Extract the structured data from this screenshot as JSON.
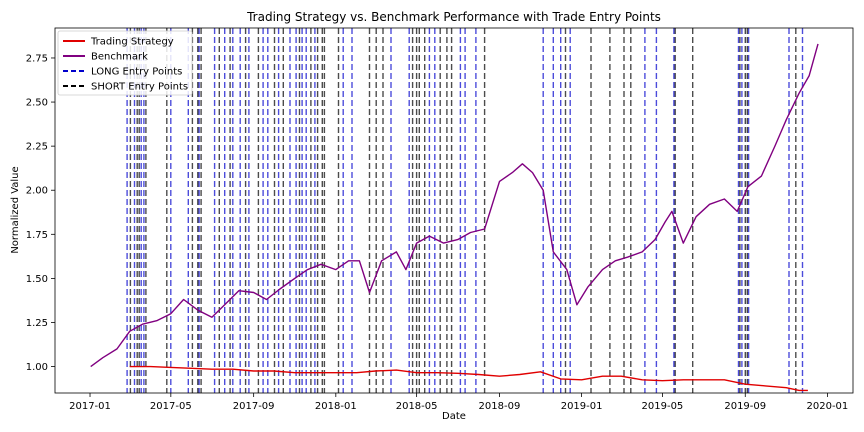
{
  "chart_data": {
    "type": "line",
    "title": "Trading Strategy vs. Benchmark Performance with Trade Entry Points",
    "xlabel": "Date",
    "ylabel": "Normalized Value",
    "xlim": [
      "2016-11-10",
      "2020-02-08"
    ],
    "ylim": [
      0.85,
      2.92
    ],
    "x_ticks": [
      "2017-01",
      "2017-05",
      "2017-09",
      "2018-01",
      "2018-05",
      "2018-09",
      "2019-01",
      "2019-05",
      "2019-09",
      "2020-01"
    ],
    "y_ticks": [
      "1.00",
      "1.25",
      "1.50",
      "1.75",
      "2.00",
      "2.25",
      "2.50",
      "2.75"
    ],
    "grid": false,
    "legend_position": "top-left",
    "colors": {
      "strategy": "#e00000",
      "benchmark": "#800080",
      "long": "#0000cc",
      "short": "#000000"
    },
    "series": [
      {
        "name": "Trading Strategy",
        "x": [
          "2017-03-01",
          "2017-04-01",
          "2017-05-01",
          "2017-06-01",
          "2017-07-01",
          "2017-08-01",
          "2017-09-01",
          "2017-10-01",
          "2017-11-01",
          "2017-12-01",
          "2018-01-01",
          "2018-02-01",
          "2018-03-01",
          "2018-04-01",
          "2018-05-01",
          "2018-06-01",
          "2018-07-01",
          "2018-08-01",
          "2018-09-01",
          "2018-10-01",
          "2018-11-01",
          "2018-12-01",
          "2019-01-01",
          "2019-02-01",
          "2019-03-01",
          "2019-04-01",
          "2019-05-01",
          "2019-06-01",
          "2019-07-01",
          "2019-08-01",
          "2019-09-01",
          "2019-10-01",
          "2019-11-01",
          "2019-11-20",
          "2019-12-03"
        ],
        "values": [
          1.0,
          1.0,
          0.995,
          0.99,
          0.985,
          0.985,
          0.975,
          0.975,
          0.965,
          0.965,
          0.965,
          0.965,
          0.975,
          0.98,
          0.965,
          0.965,
          0.962,
          0.955,
          0.945,
          0.955,
          0.97,
          0.93,
          0.925,
          0.945,
          0.945,
          0.925,
          0.92,
          0.925,
          0.925,
          0.925,
          0.9,
          0.89,
          0.88,
          0.865,
          0.865
        ]
      },
      {
        "name": "Benchmark",
        "x": [
          "2017-01-02",
          "2017-01-20",
          "2017-02-10",
          "2017-03-01",
          "2017-03-20",
          "2017-04-10",
          "2017-05-01",
          "2017-05-20",
          "2017-06-10",
          "2017-07-01",
          "2017-07-20",
          "2017-08-10",
          "2017-09-01",
          "2017-09-20",
          "2017-10-10",
          "2017-11-01",
          "2017-11-20",
          "2017-12-10",
          "2018-01-01",
          "2018-01-20",
          "2018-02-05",
          "2018-02-20",
          "2018-03-10",
          "2018-04-01",
          "2018-04-15",
          "2018-05-01",
          "2018-05-20",
          "2018-06-10",
          "2018-07-01",
          "2018-07-20",
          "2018-08-10",
          "2018-09-01",
          "2018-09-20",
          "2018-10-05",
          "2018-10-20",
          "2018-11-05",
          "2018-11-20",
          "2018-12-10",
          "2018-12-25",
          "2019-01-10",
          "2019-02-01",
          "2019-02-20",
          "2019-03-10",
          "2019-04-01",
          "2019-04-20",
          "2019-05-05",
          "2019-05-15",
          "2019-06-01",
          "2019-06-20",
          "2019-07-10",
          "2019-08-01",
          "2019-08-20",
          "2019-09-05",
          "2019-09-25",
          "2019-10-15",
          "2019-11-01",
          "2019-11-20",
          "2019-12-05",
          "2019-12-18"
        ],
        "values": [
          1.0,
          1.05,
          1.1,
          1.2,
          1.24,
          1.26,
          1.3,
          1.38,
          1.32,
          1.28,
          1.35,
          1.43,
          1.42,
          1.38,
          1.44,
          1.5,
          1.55,
          1.58,
          1.55,
          1.6,
          1.6,
          1.42,
          1.6,
          1.65,
          1.55,
          1.7,
          1.74,
          1.7,
          1.72,
          1.76,
          1.78,
          2.05,
          2.1,
          2.15,
          2.1,
          2.0,
          1.65,
          1.55,
          1.35,
          1.45,
          1.55,
          1.6,
          1.62,
          1.65,
          1.72,
          1.82,
          1.88,
          1.7,
          1.85,
          1.92,
          1.95,
          1.88,
          2.02,
          2.08,
          2.25,
          2.4,
          2.55,
          2.65,
          2.83
        ]
      }
    ],
    "long_entries": [
      "2017-02-25",
      "2017-03-08",
      "2017-03-18",
      "2017-03-22",
      "2017-05-01",
      "2017-05-27",
      "2017-06-12",
      "2017-07-05",
      "2017-07-20",
      "2017-08-01",
      "2017-08-12",
      "2017-08-25",
      "2017-09-15",
      "2017-09-22",
      "2017-10-08",
      "2017-10-25",
      "2017-11-03",
      "2017-11-12",
      "2017-11-18",
      "2017-12-01",
      "2018-01-12",
      "2018-01-25",
      "2018-03-24",
      "2018-04-20",
      "2018-05-20",
      "2018-05-28",
      "2018-07-05",
      "2018-07-12",
      "2018-07-28",
      "2018-11-05",
      "2018-11-20",
      "2018-12-01",
      "2018-12-15",
      "2019-04-05",
      "2019-04-22",
      "2019-05-18",
      "2019-08-22",
      "2019-08-27",
      "2019-09-06",
      "2019-11-05",
      "2019-11-25"
    ],
    "short_entries": [
      "2017-03-02",
      "2017-03-12",
      "2017-03-15",
      "2017-03-25",
      "2017-04-25",
      "2017-06-02",
      "2017-06-10",
      "2017-06-15",
      "2017-07-12",
      "2017-07-28",
      "2017-08-20",
      "2017-09-08",
      "2017-10-02",
      "2017-10-15",
      "2017-11-08",
      "2017-11-25",
      "2017-12-05",
      "2017-12-12",
      "2017-12-15",
      "2018-01-05",
      "2018-02-20",
      "2018-03-02",
      "2018-03-12",
      "2018-04-25",
      "2018-05-01",
      "2018-05-05",
      "2018-05-13",
      "2018-06-05",
      "2018-06-15",
      "2018-06-22",
      "2018-08-10",
      "2018-12-08",
      "2019-01-15",
      "2019-02-12",
      "2019-03-05",
      "2019-03-15",
      "2019-05-20",
      "2019-06-15",
      "2019-08-24",
      "2019-09-01",
      "2019-09-04",
      "2019-11-15"
    ],
    "legend": [
      {
        "label": "Trading Strategy",
        "style": "solid",
        "color": "#e00000"
      },
      {
        "label": "Benchmark",
        "style": "solid",
        "color": "#800080"
      },
      {
        "label": "LONG Entry Points",
        "style": "dashed",
        "color": "#0000cc"
      },
      {
        "label": "SHORT Entry Points",
        "style": "dashed",
        "color": "#000000"
      }
    ]
  }
}
